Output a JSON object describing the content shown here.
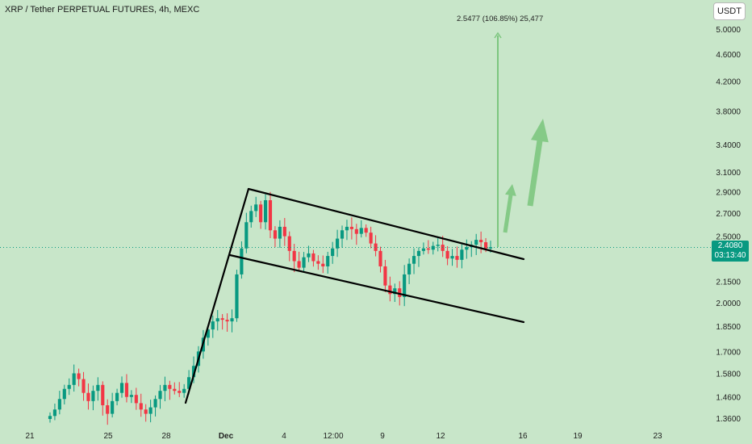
{
  "header": {
    "title": "XRP / Tether PERPETUAL FUTURES, 4h, MEXC",
    "currency": "USDT"
  },
  "last_price": {
    "value": "2.4080",
    "countdown": "03:13:40"
  },
  "projection": {
    "label": "2.5477 (106.85%) 25,477"
  },
  "colors": {
    "background": "#c8e6c9",
    "up": "#089981",
    "down": "#f23645",
    "arrow": "#7dc67f",
    "pattern_lines": "#000000"
  },
  "chart_data": {
    "type": "candlestick",
    "symbol": "XRP / Tether PERPETUAL FUTURES",
    "interval": "4h",
    "exchange": "MEXC",
    "y_scale": "log",
    "y_ticks": [
      "5.0000",
      "4.6000",
      "4.2000",
      "3.8000",
      "3.4000",
      "3.1000",
      "2.9000",
      "2.7000",
      "2.5000",
      "2.1500",
      "2.0000",
      "1.8500",
      "1.7000",
      "1.5800",
      "1.4600",
      "1.3600"
    ],
    "x_ticks": [
      "21",
      "25",
      "28",
      "Dec",
      "4",
      "12:00",
      "9",
      "12",
      "16",
      "19",
      "23"
    ],
    "current_price": 2.408,
    "projection_target": 5.0,
    "pattern": "bull flag",
    "ohlc_close_path": [
      1.37,
      1.4,
      1.45,
      1.5,
      1.52,
      1.58,
      1.55,
      1.48,
      1.44,
      1.49,
      1.52,
      1.42,
      1.38,
      1.44,
      1.48,
      1.53,
      1.46,
      1.47,
      1.43,
      1.4,
      1.38,
      1.41,
      1.45,
      1.49,
      1.52,
      1.5,
      1.49,
      1.48,
      1.5,
      1.56,
      1.62,
      1.7,
      1.78,
      1.83,
      1.88,
      1.9,
      1.89,
      1.88,
      1.9,
      2.2,
      2.4,
      2.62,
      2.72,
      2.78,
      2.62,
      2.82,
      2.55,
      2.48,
      2.58,
      2.5,
      2.38,
      2.3,
      2.25,
      2.33,
      2.36,
      2.3,
      2.28,
      2.26,
      2.34,
      2.4,
      2.48,
      2.55,
      2.58,
      2.56,
      2.52,
      2.57,
      2.53,
      2.44,
      2.38,
      2.26,
      2.12,
      2.06,
      2.1,
      2.04,
      2.2,
      2.28,
      2.34,
      2.38,
      2.4,
      2.39,
      2.42,
      2.43,
      2.38,
      2.32,
      2.34,
      2.31,
      2.39,
      2.41,
      2.43,
      2.47,
      2.45,
      2.4,
      2.41
    ]
  }
}
